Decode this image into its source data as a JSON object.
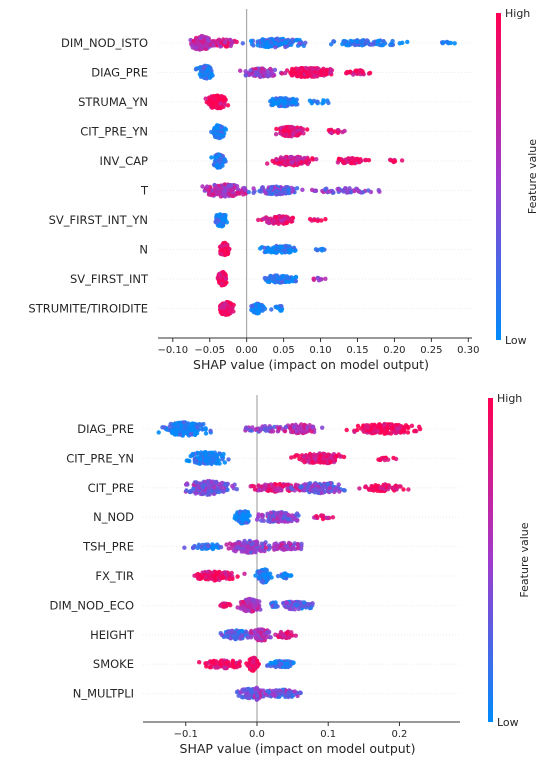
{
  "chart_data": [
    {
      "type": "scatter",
      "subtype": "shap-beeswarm",
      "xlabel": "SHAP value (impact on model output)",
      "xlim": [
        -0.12,
        0.305
      ],
      "xticks": [
        -0.1,
        -0.05,
        0.0,
        0.05,
        0.1,
        0.15,
        0.2,
        0.25,
        0.3
      ],
      "xtick_labels": [
        "−0.10",
        "−0.05",
        "0.00",
        "0.05",
        "0.10",
        "0.15",
        "0.20",
        "0.25",
        "0.30"
      ],
      "colorbar": {
        "label": "Feature value",
        "high": "High",
        "low": "Low"
      },
      "features": [
        {
          "name": "DIM_NOD_ISTO",
          "clusters": [
            {
              "c": -0.062,
              "w": 0.028,
              "n": 110,
              "col": 0.65,
              "h": 14
            },
            {
              "c": -0.03,
              "w": 0.025,
              "n": 40,
              "col": 0.75,
              "h": 8
            },
            {
              "c": 0.04,
              "w": 0.06,
              "n": 140,
              "col": 0.12,
              "h": 9
            },
            {
              "c": 0.16,
              "w": 0.08,
              "n": 80,
              "col": 0.05,
              "h": 6
            },
            {
              "c": 0.27,
              "w": 0.02,
              "n": 8,
              "col": 0.05,
              "h": 2
            }
          ]
        },
        {
          "name": "DIAG_PRE",
          "clusters": [
            {
              "c": -0.055,
              "w": 0.018,
              "n": 90,
              "col": 0.05,
              "h": 14
            },
            {
              "c": 0.02,
              "w": 0.04,
              "n": 90,
              "col": 0.55,
              "h": 9
            },
            {
              "c": 0.085,
              "w": 0.05,
              "n": 150,
              "col": 0.9,
              "h": 10
            },
            {
              "c": 0.15,
              "w": 0.025,
              "n": 30,
              "col": 0.9,
              "h": 5
            }
          ]
        },
        {
          "name": "STRUMA_YN",
          "clusters": [
            {
              "c": -0.04,
              "w": 0.022,
              "n": 150,
              "col": 0.95,
              "h": 14
            },
            {
              "c": 0.05,
              "w": 0.03,
              "n": 90,
              "col": 0.05,
              "h": 9
            },
            {
              "c": 0.1,
              "w": 0.025,
              "n": 12,
              "col": 0.05,
              "h": 4
            }
          ]
        },
        {
          "name": "CIT_PRE_YN",
          "clusters": [
            {
              "c": -0.038,
              "w": 0.012,
              "n": 90,
              "col": 0.05,
              "h": 14
            },
            {
              "c": 0.06,
              "w": 0.03,
              "n": 120,
              "col": 0.85,
              "h": 10
            },
            {
              "c": 0.12,
              "w": 0.025,
              "n": 15,
              "col": 0.9,
              "h": 4
            }
          ]
        },
        {
          "name": "INV_CAP",
          "clusters": [
            {
              "c": -0.038,
              "w": 0.012,
              "n": 90,
              "col": 0.05,
              "h": 14
            },
            {
              "c": 0.06,
              "w": 0.045,
              "n": 120,
              "col": 0.8,
              "h": 9
            },
            {
              "c": 0.14,
              "w": 0.04,
              "n": 50,
              "col": 0.9,
              "h": 6
            },
            {
              "c": 0.2,
              "w": 0.02,
              "n": 10,
              "col": 0.9,
              "h": 3
            }
          ]
        },
        {
          "name": "T",
          "clusters": [
            {
              "c": -0.03,
              "w": 0.045,
              "n": 140,
              "col": 0.6,
              "h": 13
            },
            {
              "c": 0.04,
              "w": 0.05,
              "n": 110,
              "col": 0.3,
              "h": 8
            },
            {
              "c": 0.13,
              "w": 0.07,
              "n": 50,
              "col": 0.4,
              "h": 5
            }
          ]
        },
        {
          "name": "SV_FIRST_INT_YN",
          "clusters": [
            {
              "c": -0.035,
              "w": 0.012,
              "n": 80,
              "col": 0.05,
              "h": 14
            },
            {
              "c": 0.045,
              "w": 0.035,
              "n": 80,
              "col": 0.85,
              "h": 8
            },
            {
              "c": 0.095,
              "w": 0.015,
              "n": 8,
              "col": 0.9,
              "h": 3
            }
          ]
        },
        {
          "name": "N",
          "clusters": [
            {
              "c": -0.03,
              "w": 0.01,
              "n": 80,
              "col": 0.95,
              "h": 14
            },
            {
              "c": 0.045,
              "w": 0.035,
              "n": 90,
              "col": 0.05,
              "h": 8
            },
            {
              "c": 0.1,
              "w": 0.015,
              "n": 8,
              "col": 0.05,
              "h": 3
            }
          ]
        },
        {
          "name": "SV_FIRST_INT",
          "clusters": [
            {
              "c": -0.032,
              "w": 0.01,
              "n": 80,
              "col": 0.95,
              "h": 14
            },
            {
              "c": 0.045,
              "w": 0.035,
              "n": 90,
              "col": 0.1,
              "h": 8
            },
            {
              "c": 0.095,
              "w": 0.015,
              "n": 8,
              "col": 0.6,
              "h": 3
            }
          ]
        },
        {
          "name": "STRUMITE/TIROIDITE",
          "clusters": [
            {
              "c": -0.028,
              "w": 0.016,
              "n": 120,
              "col": 0.95,
              "h": 14
            },
            {
              "c": 0.015,
              "w": 0.015,
              "n": 70,
              "col": 0.05,
              "h": 10
            },
            {
              "c": 0.045,
              "w": 0.015,
              "n": 20,
              "col": 0.05,
              "h": 5
            }
          ]
        }
      ]
    },
    {
      "type": "scatter",
      "subtype": "shap-beeswarm",
      "xlabel": "SHAP value (impact on model output)",
      "xlim": [
        -0.16,
        0.285
      ],
      "xticks": [
        -0.1,
        0.0,
        0.1,
        0.2
      ],
      "xtick_labels": [
        "−0.1",
        "0.0",
        "0.1",
        "0.2"
      ],
      "colorbar": {
        "label": "Feature value",
        "high": "High",
        "low": "Low"
      },
      "features": [
        {
          "name": "DIAG_PRE",
          "clusters": [
            {
              "c": -0.1,
              "w": 0.05,
              "n": 160,
              "col": 0.05,
              "h": 14
            },
            {
              "c": 0.01,
              "w": 0.05,
              "n": 40,
              "col": 0.4,
              "h": 6
            },
            {
              "c": 0.06,
              "w": 0.04,
              "n": 90,
              "col": 0.6,
              "h": 10
            },
            {
              "c": 0.18,
              "w": 0.07,
              "n": 160,
              "col": 0.95,
              "h": 10
            }
          ]
        },
        {
          "name": "CIT_PRE_YN",
          "clusters": [
            {
              "c": -0.07,
              "w": 0.04,
              "n": 130,
              "col": 0.05,
              "h": 14
            },
            {
              "c": 0.09,
              "w": 0.05,
              "n": 130,
              "col": 0.85,
              "h": 11
            },
            {
              "c": 0.18,
              "w": 0.02,
              "n": 12,
              "col": 0.9,
              "h": 4
            }
          ]
        },
        {
          "name": "CIT_PRE",
          "clusters": [
            {
              "c": -0.07,
              "w": 0.05,
              "n": 160,
              "col": 0.4,
              "h": 14
            },
            {
              "c": 0.03,
              "w": 0.06,
              "n": 100,
              "col": 0.75,
              "h": 8
            },
            {
              "c": 0.09,
              "w": 0.05,
              "n": 110,
              "col": 0.35,
              "h": 11
            },
            {
              "c": 0.18,
              "w": 0.05,
              "n": 60,
              "col": 0.9,
              "h": 7
            }
          ]
        },
        {
          "name": "N_NOD",
          "clusters": [
            {
              "c": -0.02,
              "w": 0.015,
              "n": 90,
              "col": 0.05,
              "h": 14
            },
            {
              "c": 0.03,
              "w": 0.045,
              "n": 110,
              "col": 0.4,
              "h": 11
            },
            {
              "c": 0.09,
              "w": 0.025,
              "n": 15,
              "col": 0.8,
              "h": 4
            }
          ]
        },
        {
          "name": "TSH_PRE",
          "clusters": [
            {
              "c": -0.01,
              "w": 0.04,
              "n": 120,
              "col": 0.45,
              "h": 13
            },
            {
              "c": -0.07,
              "w": 0.04,
              "n": 40,
              "col": 0.1,
              "h": 6
            },
            {
              "c": 0.04,
              "w": 0.04,
              "n": 60,
              "col": 0.6,
              "h": 8
            }
          ]
        },
        {
          "name": "FX_TIR",
          "clusters": [
            {
              "c": -0.06,
              "w": 0.05,
              "n": 120,
              "col": 0.92,
              "h": 9
            },
            {
              "c": 0.01,
              "w": 0.015,
              "n": 90,
              "col": 0.05,
              "h": 14
            },
            {
              "c": 0.04,
              "w": 0.015,
              "n": 20,
              "col": 0.1,
              "h": 5
            }
          ]
        },
        {
          "name": "DIM_NOD_ECO",
          "clusters": [
            {
              "c": -0.01,
              "w": 0.025,
              "n": 100,
              "col": 0.65,
              "h": 13
            },
            {
              "c": 0.05,
              "w": 0.05,
              "n": 90,
              "col": 0.25,
              "h": 8
            },
            {
              "c": -0.045,
              "w": 0.015,
              "n": 20,
              "col": 0.8,
              "h": 4
            }
          ]
        },
        {
          "name": "HEIGHT",
          "clusters": [
            {
              "c": -0.03,
              "w": 0.035,
              "n": 80,
              "col": 0.25,
              "h": 9
            },
            {
              "c": 0.005,
              "w": 0.02,
              "n": 80,
              "col": 0.6,
              "h": 13
            },
            {
              "c": 0.04,
              "w": 0.025,
              "n": 40,
              "col": 0.8,
              "h": 7
            }
          ]
        },
        {
          "name": "SMOKE",
          "clusters": [
            {
              "c": -0.045,
              "w": 0.05,
              "n": 90,
              "col": 0.92,
              "h": 8
            },
            {
              "c": -0.005,
              "w": 0.012,
              "n": 90,
              "col": 0.95,
              "h": 14
            },
            {
              "c": 0.035,
              "w": 0.03,
              "n": 60,
              "col": 0.1,
              "h": 7
            }
          ]
        },
        {
          "name": "N_MULTPLI",
          "clusters": [
            {
              "c": -0.01,
              "w": 0.03,
              "n": 80,
              "col": 0.3,
              "h": 10
            },
            {
              "c": 0.035,
              "w": 0.04,
              "n": 80,
              "col": 0.35,
              "h": 8
            },
            {
              "c": 0.0,
              "w": 0.008,
              "n": 40,
              "col": 0.5,
              "h": 13
            }
          ]
        }
      ]
    }
  ]
}
